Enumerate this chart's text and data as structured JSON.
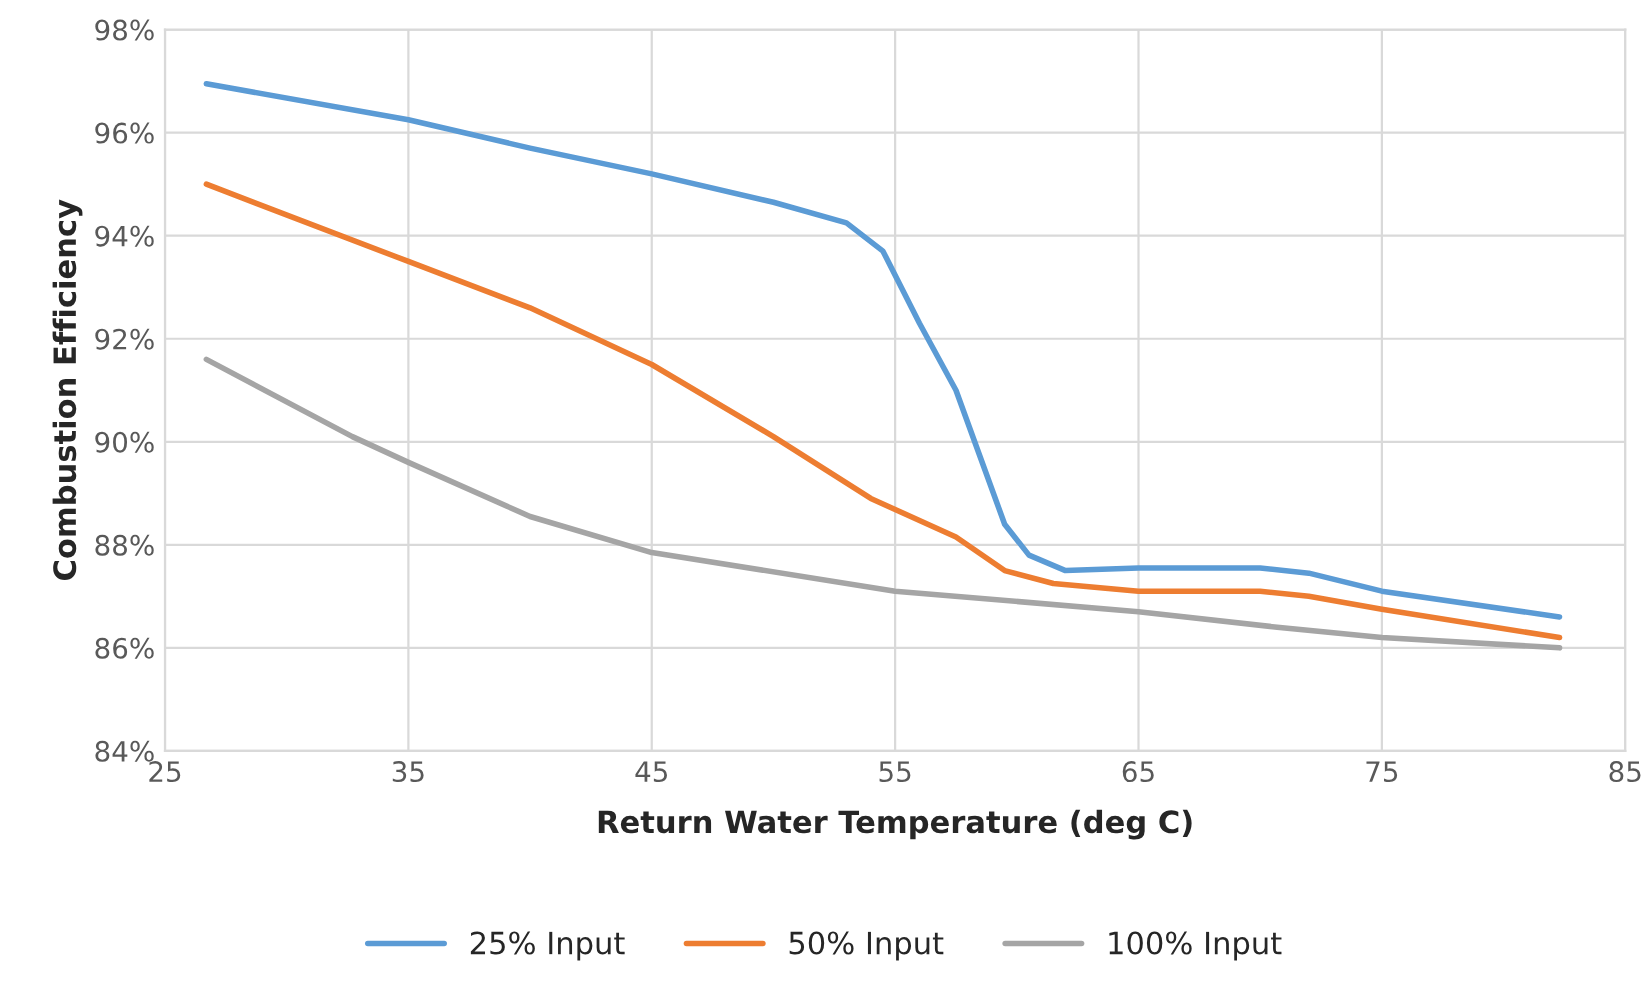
{
  "chart_data": {
    "type": "line",
    "xlabel": "Return Water Temperature (deg C)",
    "ylabel": "Combustion Efficiency",
    "series": [
      {
        "name": "25% Input",
        "color": "#5b9bd5",
        "x": [
          26.7,
          35,
          40,
          45,
          50,
          53,
          54.5,
          56,
          57.5,
          58.5,
          59.5,
          60.5,
          62,
          65,
          70,
          72,
          75,
          82.3
        ],
        "values": [
          96.95,
          96.25,
          95.7,
          95.2,
          94.65,
          94.25,
          93.7,
          92.3,
          91.0,
          89.7,
          88.4,
          87.8,
          87.5,
          87.55,
          87.55,
          87.45,
          87.1,
          86.6
        ]
      },
      {
        "name": "50% Input",
        "color": "#ed7d31",
        "x": [
          26.7,
          35,
          40,
          45,
          50,
          54,
          57.5,
          59.5,
          61.5,
          65,
          70,
          72,
          75,
          82.3
        ],
        "values": [
          95.0,
          93.5,
          92.6,
          91.5,
          90.1,
          88.9,
          88.15,
          87.5,
          87.25,
          87.1,
          87.1,
          87.0,
          86.75,
          86.2
        ]
      },
      {
        "name": "100% Input",
        "color": "#a5a5a5",
        "x": [
          26.7,
          32.7,
          35,
          40,
          45,
          55,
          65,
          70.7,
          75,
          82.3
        ],
        "values": [
          91.6,
          90.1,
          89.6,
          88.55,
          87.85,
          87.1,
          86.7,
          86.4,
          86.2,
          86.0
        ]
      }
    ],
    "xlim": [
      25,
      85
    ],
    "xticks": [
      25,
      35,
      45,
      55,
      65,
      75,
      85
    ],
    "ylim": [
      84,
      98
    ],
    "yticks": [
      {
        "value": 84,
        "label": "84%"
      },
      {
        "value": 86,
        "label": "86%"
      },
      {
        "value": 88,
        "label": "88%"
      },
      {
        "value": 90,
        "label": "90%"
      },
      {
        "value": 92,
        "label": "92%"
      },
      {
        "value": 94,
        "label": "94%"
      },
      {
        "value": 96,
        "label": "96%"
      },
      {
        "value": 98,
        "label": "98%"
      }
    ],
    "grid": true,
    "legend": "bottom",
    "marker": "none",
    "line_style": "solid"
  }
}
